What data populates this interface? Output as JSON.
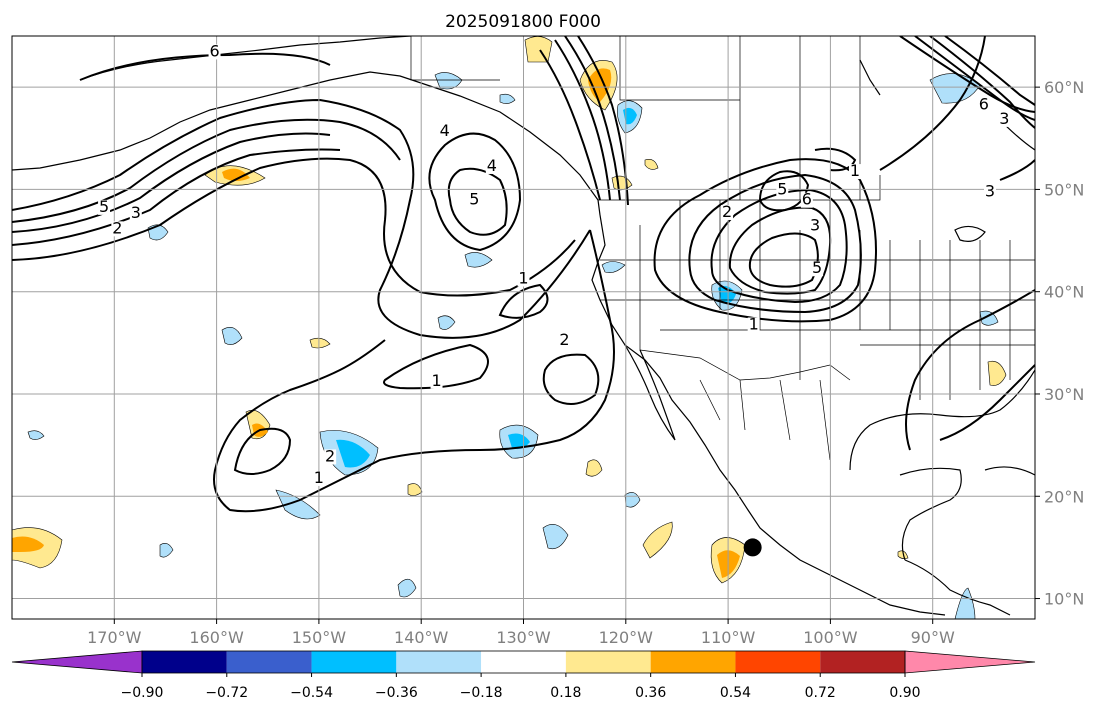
{
  "figure": {
    "title": "2025091800 F000"
  },
  "map": {
    "projection": "cylindrical",
    "lon_range": [
      -180,
      -80
    ],
    "lat_range": [
      8,
      65
    ],
    "lon_ticks": [
      {
        "lon": -170,
        "label": "170°W"
      },
      {
        "lon": -160,
        "label": "160°W"
      },
      {
        "lon": -150,
        "label": "150°W"
      },
      {
        "lon": -140,
        "label": "140°W"
      },
      {
        "lon": -130,
        "label": "130°W"
      },
      {
        "lon": -120,
        "label": "120°W"
      },
      {
        "lon": -110,
        "label": "110°W"
      },
      {
        "lon": -100,
        "label": "100°W"
      },
      {
        "lon": -90,
        "label": "90°W"
      }
    ],
    "lat_ticks": [
      {
        "lat": 60,
        "label": "60°N"
      },
      {
        "lat": 50,
        "label": "50°N"
      },
      {
        "lat": 40,
        "label": "40°N"
      },
      {
        "lat": 30,
        "label": "30°N"
      },
      {
        "lat": 20,
        "label": "20°N"
      },
      {
        "lat": 10,
        "label": "10°N"
      }
    ],
    "grid": true,
    "grid_color": "#a0a0a0",
    "marker": {
      "lon": -107.6,
      "lat": 15.0,
      "color": "#000000"
    },
    "contour_labels": [
      {
        "text": "6",
        "lon": -160.2,
        "lat": 63.2
      },
      {
        "text": "4",
        "lon": -137.7,
        "lat": 55.4
      },
      {
        "text": "4",
        "lon": -133.1,
        "lat": 52.0
      },
      {
        "text": "5",
        "lon": -134.8,
        "lat": 48.7
      },
      {
        "text": "5",
        "lon": -171.0,
        "lat": 48.0
      },
      {
        "text": "3",
        "lon": -167.9,
        "lat": 47.4
      },
      {
        "text": "2",
        "lon": -169.7,
        "lat": 45.9
      },
      {
        "text": "1",
        "lon": -130.0,
        "lat": 41.0
      },
      {
        "text": "1",
        "lon": -138.5,
        "lat": 31.0
      },
      {
        "text": "2",
        "lon": -126.0,
        "lat": 35.0
      },
      {
        "text": "2",
        "lon": -148.9,
        "lat": 23.6
      },
      {
        "text": "1",
        "lon": -150.0,
        "lat": 21.5
      },
      {
        "text": "1",
        "lon": -97.6,
        "lat": 51.5
      },
      {
        "text": "5",
        "lon": -104.7,
        "lat": 49.7
      },
      {
        "text": "6",
        "lon": -102.3,
        "lat": 48.7
      },
      {
        "text": "2",
        "lon": -110.1,
        "lat": 47.5
      },
      {
        "text": "3",
        "lon": -101.5,
        "lat": 46.2
      },
      {
        "text": "5",
        "lon": -101.3,
        "lat": 42.0
      },
      {
        "text": "1",
        "lon": -107.5,
        "lat": 36.5
      },
      {
        "text": "6",
        "lon": -85.0,
        "lat": 58.0
      },
      {
        "text": "3",
        "lon": -83.0,
        "lat": 56.6
      },
      {
        "text": "3",
        "lon": -84.4,
        "lat": 49.5
      }
    ]
  },
  "colorbar": {
    "colors": [
      "#9932cc",
      "#00008b",
      "#3a5fcd",
      "#00bfff",
      "#b0e0fa",
      "#ffffff",
      "#ffe990",
      "#ffa500",
      "#ff4500",
      "#b22222",
      "#ff88aa"
    ],
    "tick_labels": [
      "−0.90",
      "−0.72",
      "−0.54",
      "−0.36",
      "−0.18",
      "0.18",
      "0.36",
      "0.54",
      "0.72",
      "0.90"
    ]
  }
}
